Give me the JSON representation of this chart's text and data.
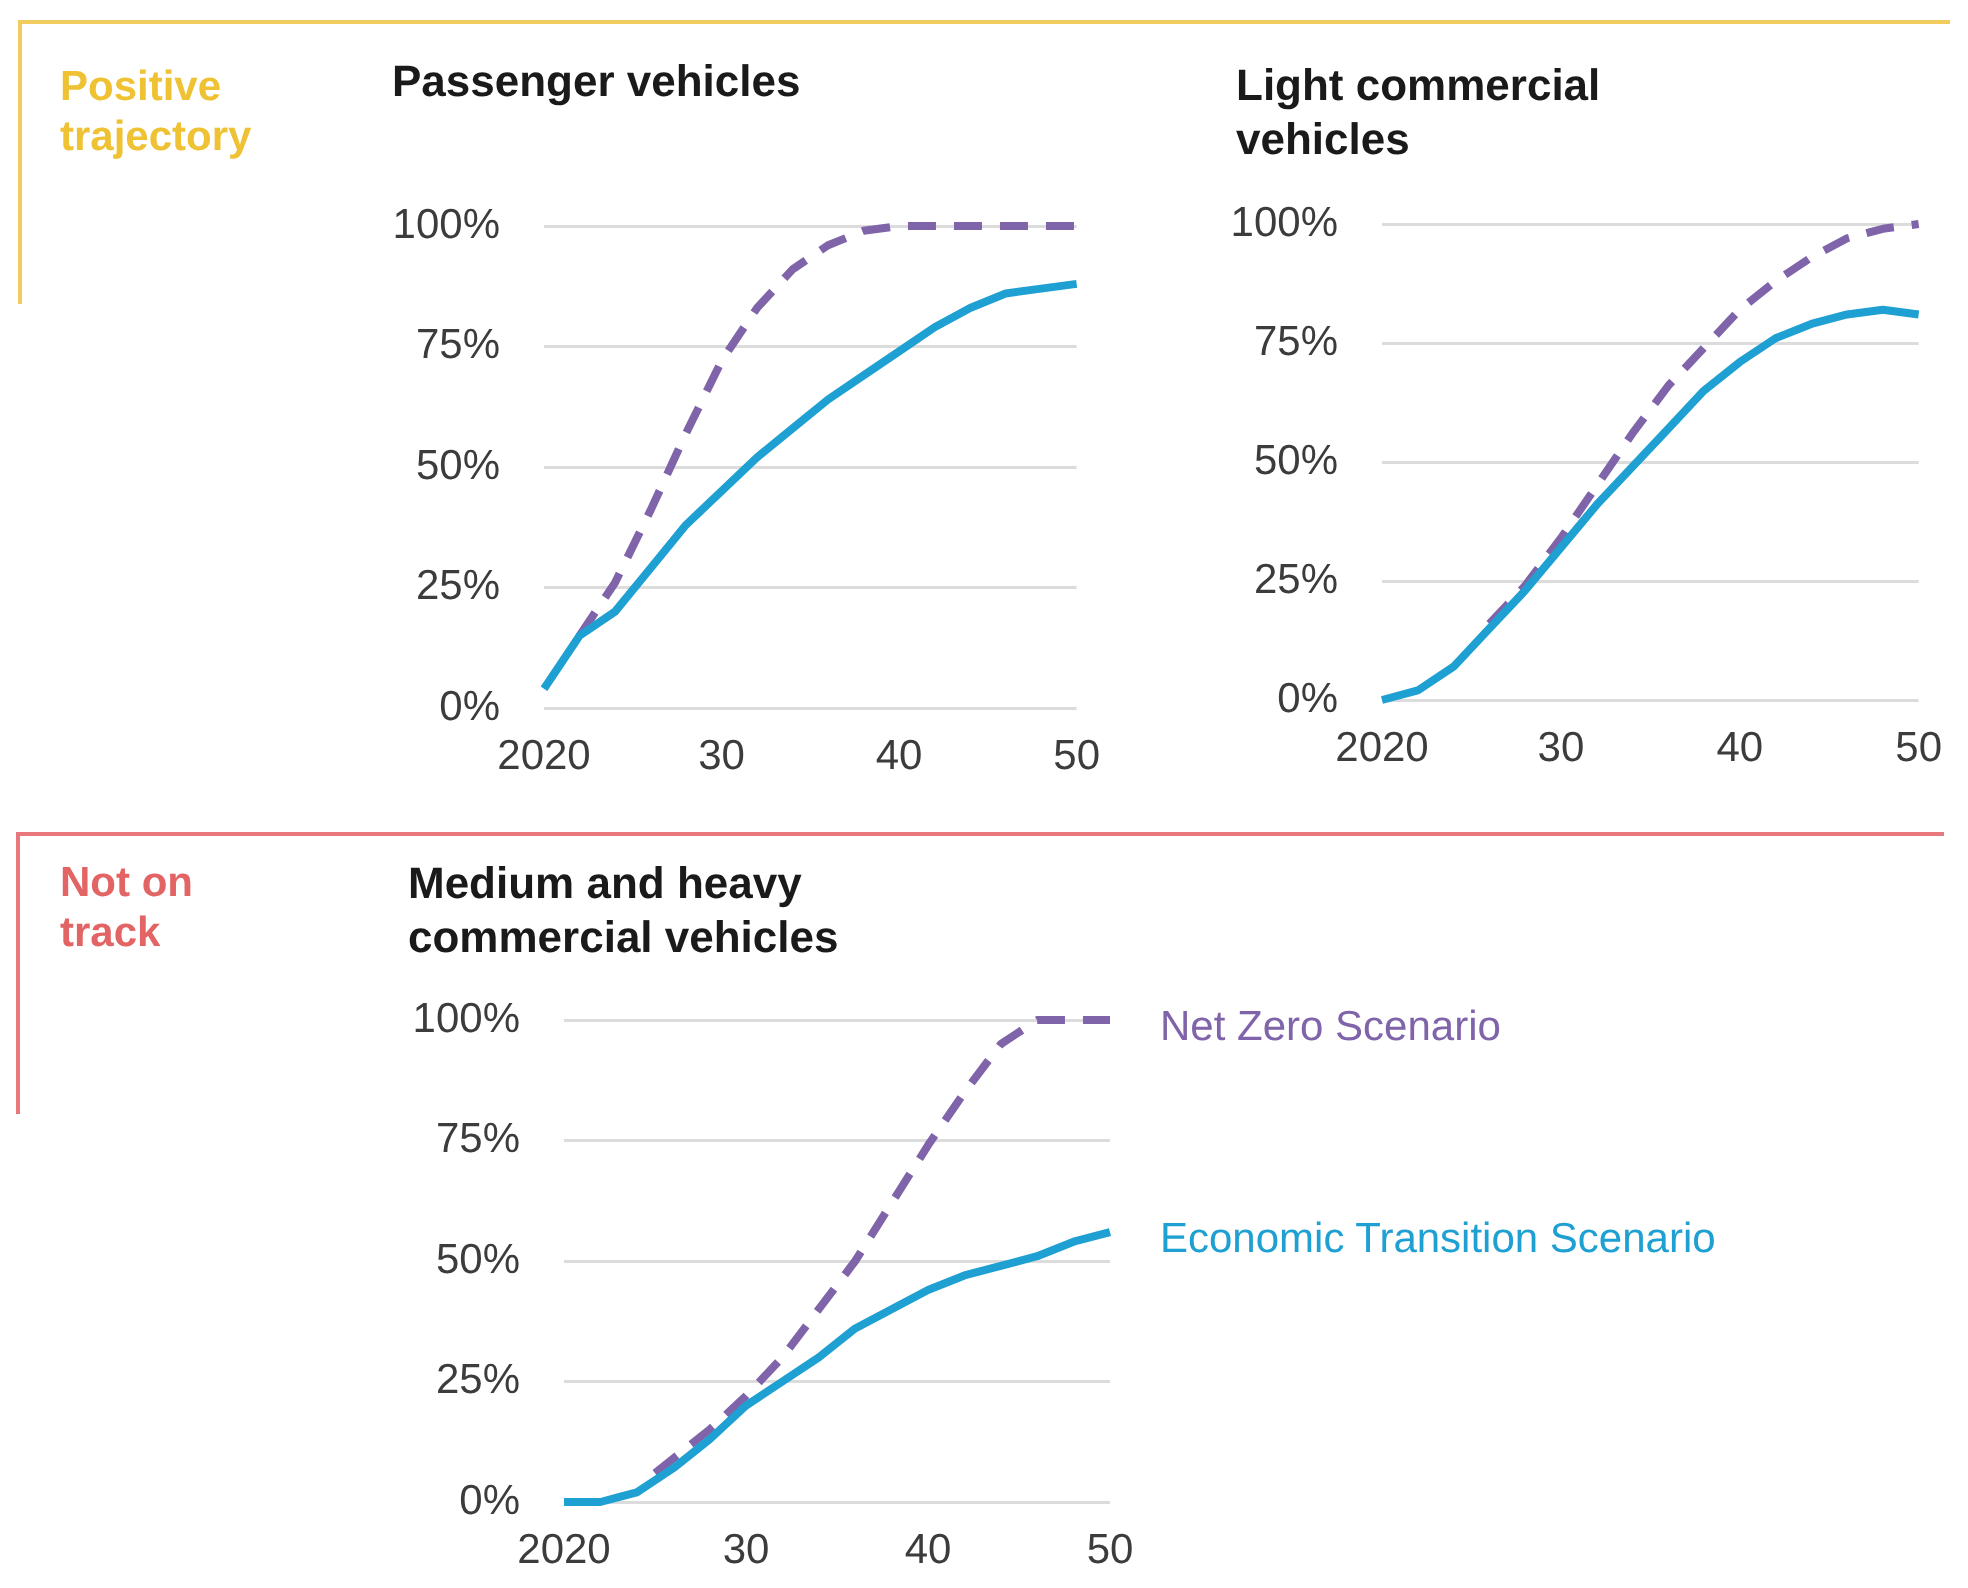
{
  "chart_data": [
    {
      "type": "line",
      "title": "Passenger vehicles",
      "annotations": [
        "Positive trajectory"
      ],
      "xlim": [
        2020,
        2050
      ],
      "xticks": [
        {
          "value": 2020,
          "label": "2020"
        },
        {
          "value": 2030,
          "label": "30"
        },
        {
          "value": 2040,
          "label": "40"
        },
        {
          "value": 2050,
          "label": "50"
        }
      ],
      "ylim": [
        0,
        100
      ],
      "yticks": [
        {
          "value": 0,
          "label": "0%"
        },
        {
          "value": 25,
          "label": "25%"
        },
        {
          "value": 50,
          "label": "50%"
        },
        {
          "value": 75,
          "label": "75%"
        },
        {
          "value": 100,
          "label": "100%"
        }
      ],
      "grid": "y",
      "marker": "none",
      "series": [
        {
          "color": "#8064aa",
          "line_style": "dashed",
          "x": [
            2022,
            2024,
            2026,
            2028,
            2030,
            2032,
            2034,
            2036,
            2038,
            2040,
            2045,
            2050
          ],
          "values": [
            15,
            26,
            41,
            57,
            72,
            83,
            91,
            96,
            99,
            100,
            100,
            100
          ]
        },
        {
          "color": "#1ea0d2",
          "line_style": "solid",
          "x": [
            2020,
            2022,
            2024,
            2026,
            2028,
            2030,
            2032,
            2034,
            2036,
            2038,
            2040,
            2042,
            2044,
            2046,
            2048,
            2050
          ],
          "values": [
            4,
            15,
            20,
            29,
            38,
            45,
            52,
            58,
            64,
            69,
            74,
            79,
            83,
            86,
            87,
            88
          ]
        }
      ]
    },
    {
      "type": "line",
      "title": "Light commercial vehicles",
      "xlim": [
        2020,
        2050
      ],
      "xticks": [
        {
          "value": 2020,
          "label": "2020"
        },
        {
          "value": 2030,
          "label": "30"
        },
        {
          "value": 2040,
          "label": "40"
        },
        {
          "value": 2050,
          "label": "50"
        }
      ],
      "ylim": [
        0,
        100
      ],
      "yticks": [
        {
          "value": 0,
          "label": "0%"
        },
        {
          "value": 25,
          "label": "25%"
        },
        {
          "value": 50,
          "label": "50%"
        },
        {
          "value": 75,
          "label": "75%"
        },
        {
          "value": 100,
          "label": "100%"
        }
      ],
      "grid": "y",
      "marker": "none",
      "series": [
        {
          "color": "#8064aa",
          "line_style": "dashed",
          "x": [
            2026,
            2028,
            2030,
            2032,
            2034,
            2036,
            2038,
            2040,
            2042,
            2044,
            2046,
            2048,
            2050
          ],
          "values": [
            16,
            24,
            34,
            45,
            56,
            66,
            74,
            82,
            88,
            93,
            97,
            99,
            100
          ]
        },
        {
          "color": "#1ea0d2",
          "line_style": "solid",
          "x": [
            2020,
            2022,
            2024,
            2026,
            2028,
            2030,
            2032,
            2034,
            2036,
            2038,
            2040,
            2042,
            2044,
            2046,
            2048,
            2050
          ],
          "values": [
            0,
            2,
            7,
            15,
            23,
            32,
            41,
            49,
            57,
            65,
            71,
            76,
            79,
            81,
            82,
            81
          ]
        }
      ]
    },
    {
      "type": "line",
      "title": "Medium and heavy commercial vehicles",
      "annotations": [
        "Not on track"
      ],
      "xlim": [
        2020,
        2050
      ],
      "xticks": [
        {
          "value": 2020,
          "label": "2020"
        },
        {
          "value": 2030,
          "label": "30"
        },
        {
          "value": 2040,
          "label": "40"
        },
        {
          "value": 2050,
          "label": "50"
        }
      ],
      "ylim": [
        0,
        100
      ],
      "yticks": [
        {
          "value": 0,
          "label": "0%"
        },
        {
          "value": 25,
          "label": "25%"
        },
        {
          "value": 50,
          "label": "50%"
        },
        {
          "value": 75,
          "label": "75%"
        },
        {
          "value": 100,
          "label": "100%"
        }
      ],
      "grid": "y",
      "marker": "none",
      "series": [
        {
          "name": "Net Zero Scenario",
          "color": "#8064aa",
          "line_style": "dashed",
          "x": [
            2025,
            2026,
            2028,
            2030,
            2032,
            2034,
            2036,
            2038,
            2040,
            2042,
            2044,
            2046,
            2048,
            2050
          ],
          "values": [
            6,
            9,
            15,
            22,
            30,
            40,
            50,
            62,
            74,
            85,
            95,
            100,
            100,
            100
          ]
        },
        {
          "name": "Economic Transition Scenario",
          "color": "#1ea0d2",
          "line_style": "solid",
          "x": [
            2020,
            2022,
            2023,
            2024,
            2026,
            2028,
            2030,
            2032,
            2034,
            2036,
            2038,
            2040,
            2042,
            2044,
            2046,
            2048,
            2050
          ],
          "values": [
            0,
            0,
            1,
            2,
            7,
            13,
            20,
            25,
            30,
            36,
            40,
            44,
            47,
            49,
            51,
            54,
            56
          ]
        }
      ]
    }
  ]
}
